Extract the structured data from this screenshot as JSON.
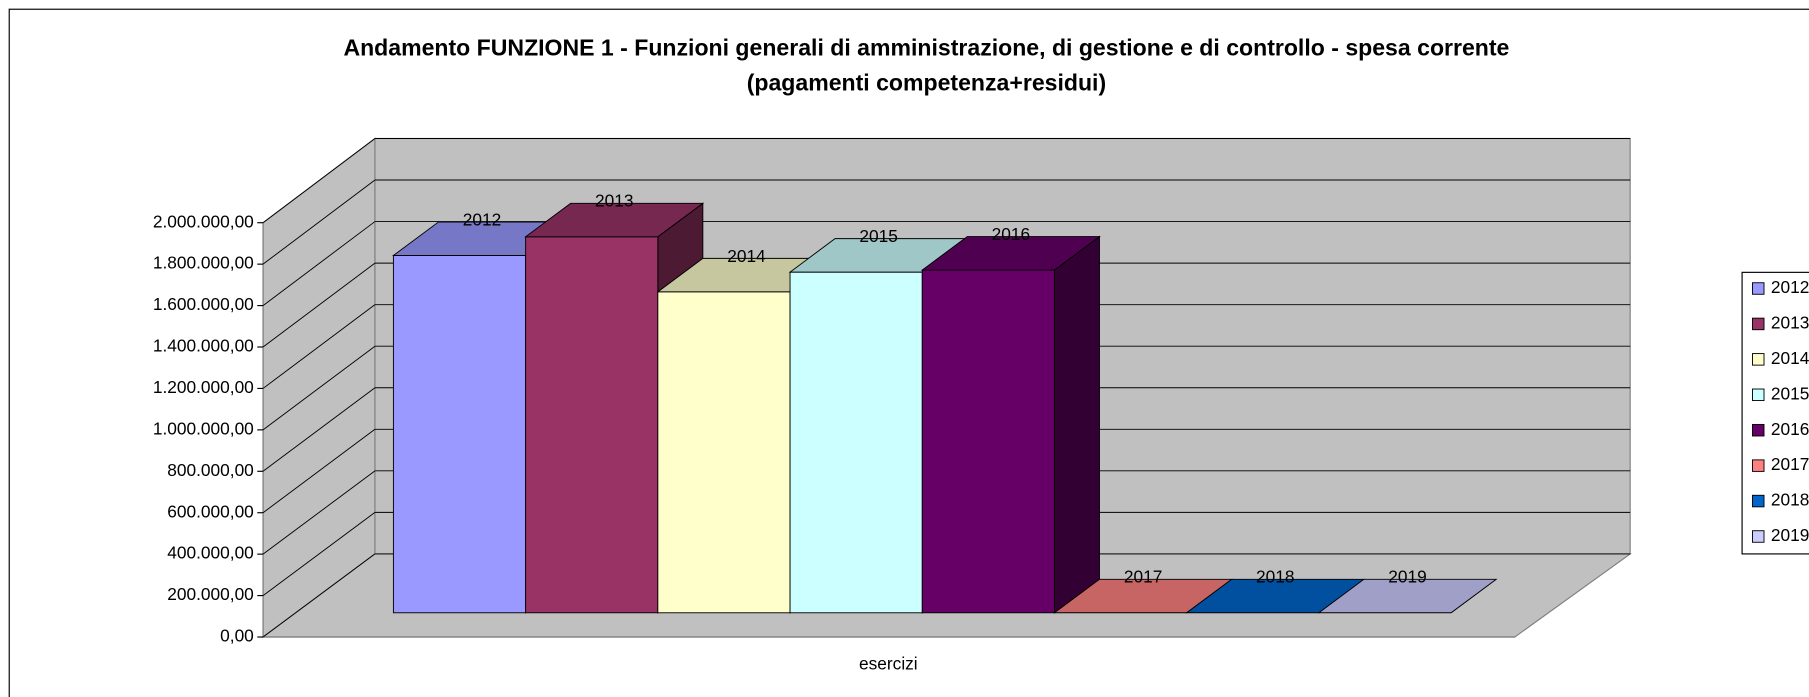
{
  "chart_data": {
    "type": "bar3d",
    "title": [
      "Andamento FUNZIONE 1 - Funzioni generali di amministrazione, di gestione e di controllo -  spesa corrente",
      "(pagamenti competenza+residui)"
    ],
    "categories": [
      "esercizi"
    ],
    "series": [
      {
        "name": "2012",
        "color": "#9999ff",
        "values": [
          1720000
        ]
      },
      {
        "name": "2013",
        "color": "#993366",
        "values": [
          1810000
        ]
      },
      {
        "name": "2014",
        "color": "#ffffcc",
        "values": [
          1545000
        ]
      },
      {
        "name": "2015",
        "color": "#ccffff",
        "values": [
          1640000
        ]
      },
      {
        "name": "2016",
        "color": "#660066",
        "values": [
          1650000
        ]
      },
      {
        "name": "2017",
        "color": "#ff8080",
        "values": [
          0
        ]
      },
      {
        "name": "2018",
        "color": "#0066cc",
        "values": [
          0
        ]
      },
      {
        "name": "2019",
        "color": "#ccccff",
        "values": [
          0
        ]
      }
    ],
    "ylim": [
      0,
      2000000
    ],
    "yticks": [
      {
        "value": 0,
        "label": "0,00"
      },
      {
        "value": 200000,
        "label": "200.000,00"
      },
      {
        "value": 400000,
        "label": "400.000,00"
      },
      {
        "value": 600000,
        "label": "600.000,00"
      },
      {
        "value": 800000,
        "label": "800.000,00"
      },
      {
        "value": 1000000,
        "label": "1.000.000,00"
      },
      {
        "value": 1200000,
        "label": "1.200.000,00"
      },
      {
        "value": 1400000,
        "label": "1.400.000,00"
      },
      {
        "value": 1600000,
        "label": "1.600.000,00"
      },
      {
        "value": 1800000,
        "label": "1.800.000,00"
      },
      {
        "value": 2000000,
        "label": "2.000.000,00"
      }
    ],
    "grid": true,
    "legend": "right"
  }
}
